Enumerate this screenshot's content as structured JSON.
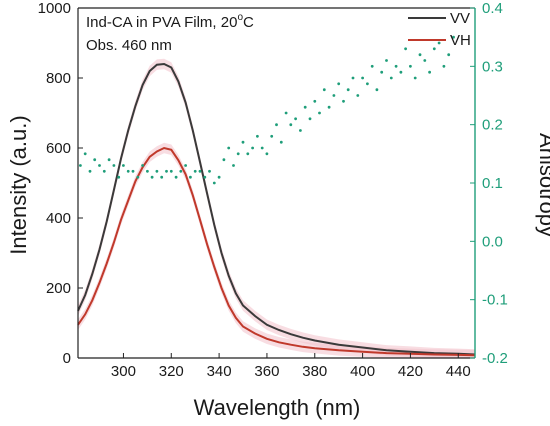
{
  "chart_data": {
    "type": "line",
    "annotation": {
      "line1": "Ind-CA in PVA Film, 20",
      "line1_sup": "o",
      "line1_suffix": "C",
      "line2": "Obs. 460 nm"
    },
    "xlabel": "Wavelength (nm)",
    "ylabel": "Intensity (a.u.)",
    "y2label": "Anisotropy",
    "xlim": [
      281,
      447
    ],
    "ylim": [
      0,
      1000
    ],
    "y2lim": [
      -0.2,
      0.4
    ],
    "xticks": [
      300,
      320,
      340,
      360,
      380,
      400,
      420,
      440
    ],
    "yticks": [
      0,
      200,
      400,
      600,
      800,
      1000
    ],
    "y2ticks": [
      -0.2,
      -0.1,
      0.0,
      0.1,
      0.2,
      0.3,
      0.4
    ],
    "y2ticklabels": [
      "-0.2",
      "-0.1",
      "0.0",
      "0.1",
      "0.2",
      "0.3",
      "0.4"
    ],
    "legend_position": "top-right",
    "colors": {
      "VV": "#3a3a3a",
      "VH": "#c0392b",
      "anisotropy": "#1f9e7a",
      "shade": "#f4c6cf"
    },
    "series": [
      {
        "name": "VV",
        "axis": "left",
        "x": [
          281,
          284,
          287,
          290,
          293,
          296,
          299,
          302,
          305,
          308,
          311,
          314,
          317,
          320,
          323,
          326,
          329,
          332,
          335,
          338,
          341,
          344,
          347,
          350,
          355,
          360,
          365,
          370,
          375,
          380,
          390,
          400,
          410,
          420,
          430,
          440,
          447
        ],
        "values": [
          135,
          180,
          240,
          310,
          390,
          480,
          570,
          650,
          720,
          780,
          820,
          838,
          840,
          830,
          790,
          730,
          650,
          560,
          470,
          380,
          300,
          235,
          185,
          150,
          120,
          95,
          80,
          68,
          58,
          50,
          38,
          30,
          22,
          18,
          14,
          12,
          10
        ]
      },
      {
        "name": "VH",
        "axis": "left",
        "x": [
          281,
          284,
          287,
          290,
          293,
          296,
          299,
          302,
          305,
          308,
          311,
          314,
          317,
          320,
          323,
          326,
          329,
          332,
          335,
          338,
          341,
          344,
          347,
          350,
          355,
          360,
          365,
          370,
          375,
          380,
          390,
          400,
          410,
          420,
          430,
          440,
          447
        ],
        "values": [
          95,
          125,
          165,
          215,
          270,
          330,
          395,
          450,
          505,
          545,
          575,
          590,
          600,
          595,
          565,
          525,
          465,
          395,
          325,
          260,
          200,
          150,
          115,
          90,
          70,
          55,
          45,
          38,
          32,
          28,
          22,
          18,
          14,
          12,
          10,
          9,
          8
        ]
      },
      {
        "name": "",
        "axis": "right",
        "type": "scatter",
        "x": [
          282,
          284,
          286,
          288,
          290,
          292,
          294,
          296,
          298,
          300,
          302,
          304,
          306,
          308,
          310,
          312,
          314,
          316,
          318,
          320,
          322,
          324,
          326,
          328,
          330,
          332,
          334,
          336,
          338,
          340,
          342,
          344,
          346,
          348,
          350,
          352,
          354,
          356,
          358,
          360,
          362,
          364,
          366,
          368,
          370,
          372,
          374,
          376,
          378,
          380,
          382,
          384,
          386,
          388,
          390,
          392,
          394,
          396,
          398,
          400,
          402,
          404,
          406,
          408,
          410,
          412,
          414,
          416,
          418,
          420,
          422,
          424,
          426,
          428,
          430,
          432,
          434,
          436,
          438
        ],
        "values": [
          0.13,
          0.15,
          0.12,
          0.14,
          0.13,
          0.12,
          0.14,
          0.13,
          0.11,
          0.13,
          0.12,
          0.12,
          0.11,
          0.13,
          0.12,
          0.11,
          0.12,
          0.11,
          0.12,
          0.12,
          0.11,
          0.12,
          0.13,
          0.11,
          0.12,
          0.12,
          0.11,
          0.12,
          0.1,
          0.11,
          0.14,
          0.16,
          0.13,
          0.15,
          0.17,
          0.15,
          0.16,
          0.18,
          0.16,
          0.15,
          0.18,
          0.2,
          0.17,
          0.22,
          0.2,
          0.21,
          0.19,
          0.23,
          0.21,
          0.24,
          0.22,
          0.26,
          0.23,
          0.25,
          0.27,
          0.24,
          0.26,
          0.28,
          0.25,
          0.28,
          0.27,
          0.3,
          0.26,
          0.29,
          0.31,
          0.28,
          0.3,
          0.29,
          0.33,
          0.3,
          0.28,
          0.32,
          0.31,
          0.29,
          0.33,
          0.34,
          0.3,
          0.32,
          0.35
        ]
      }
    ]
  }
}
